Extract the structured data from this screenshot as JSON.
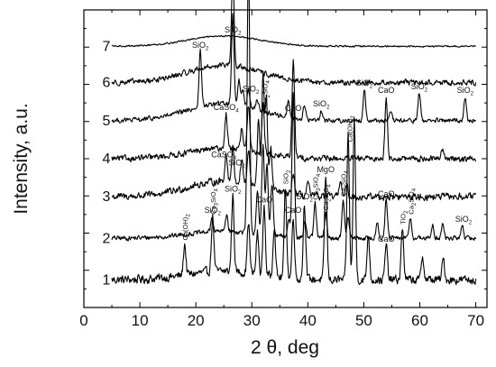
{
  "chart_data": {
    "type": "line",
    "title": "",
    "xlabel": "2 θ, deg",
    "ylabel": "Intensity, a.u.",
    "xlim": [
      0,
      72
    ],
    "xticks": [
      0,
      10,
      20,
      30,
      40,
      50,
      60,
      70
    ],
    "yticks_labeled": false,
    "grid": false,
    "legend": "none",
    "line_color": "#000000",
    "series": [
      {
        "label": "1",
        "baseline": 0.8,
        "noise": 0.22,
        "hump": 0.25,
        "peaks": [
          [
            18.0,
            0.9
          ],
          [
            23.0,
            1.6
          ],
          [
            26.6,
            2.2
          ],
          [
            29.4,
            1.5
          ],
          [
            31.0,
            1.2
          ],
          [
            32.2,
            2.0
          ],
          [
            34.0,
            1.5
          ],
          [
            36.0,
            2.6
          ],
          [
            37.4,
            1.8
          ],
          [
            39.4,
            2.2
          ],
          [
            43.2,
            3.0
          ],
          [
            47.2,
            4.2
          ],
          [
            48.3,
            4.6
          ],
          [
            50.8,
            1.3
          ],
          [
            54.0,
            1.0
          ],
          [
            56.9,
            1.5
          ],
          [
            60.5,
            0.7
          ],
          [
            64.2,
            0.6
          ]
        ]
      },
      {
        "label": "2",
        "baseline": 2.0,
        "noise": 0.12,
        "hump": 0.2,
        "peaks": [
          [
            22.9,
            0.4
          ],
          [
            25.5,
            0.5
          ],
          [
            29.4,
            8.0
          ],
          [
            31.0,
            1.2
          ],
          [
            32.0,
            2.6
          ],
          [
            32.7,
            2.0
          ],
          [
            33.6,
            1.5
          ],
          [
            36.6,
            0.5
          ],
          [
            37.4,
            4.2
          ],
          [
            39.5,
            0.5
          ],
          [
            41.3,
            1.0
          ],
          [
            43.2,
            0.7
          ],
          [
            46.3,
            1.1
          ],
          [
            47.2,
            0.6
          ],
          [
            52.4,
            0.5
          ],
          [
            54.0,
            1.1
          ],
          [
            58.3,
            0.6
          ],
          [
            62.3,
            0.4
          ],
          [
            64.1,
            0.4
          ],
          [
            67.6,
            0.4
          ]
        ]
      },
      {
        "label": "3",
        "baseline": 3.2,
        "noise": 0.18,
        "hump": 0.45,
        "peaks": [
          [
            25.4,
            0.8
          ],
          [
            26.6,
            1.0
          ],
          [
            28.2,
            0.7
          ],
          [
            29.4,
            1.0
          ],
          [
            31.2,
            2.0
          ],
          [
            32.0,
            3.2
          ],
          [
            32.6,
            2.6
          ],
          [
            33.4,
            1.2
          ],
          [
            37.4,
            0.6
          ],
          [
            40.0,
            0.4
          ],
          [
            45.8,
            0.5
          ],
          [
            47.0,
            0.3
          ]
        ]
      },
      {
        "label": "4",
        "baseline": 4.3,
        "noise": 0.15,
        "hump": 0.3,
        "peaks": [
          [
            25.4,
            1.0
          ],
          [
            28.2,
            0.6
          ],
          [
            29.4,
            1.3
          ],
          [
            32.0,
            1.5
          ],
          [
            37.4,
            2.8
          ],
          [
            54.0,
            1.8
          ],
          [
            64.0,
            0.3
          ]
        ]
      },
      {
        "label": "5",
        "baseline": 5.4,
        "noise": 0.12,
        "hump": 0.5,
        "peaks": [
          [
            20.8,
            1.6
          ],
          [
            26.6,
            2.6
          ],
          [
            27.7,
            0.7
          ],
          [
            28.4,
            0.5
          ],
          [
            29.4,
            0.5
          ],
          [
            31.0,
            0.3
          ],
          [
            36.5,
            0.5
          ],
          [
            39.4,
            0.4
          ],
          [
            42.4,
            0.3
          ],
          [
            50.1,
            0.9
          ],
          [
            54.8,
            0.2
          ],
          [
            59.9,
            0.8
          ],
          [
            68.1,
            0.7
          ]
        ]
      },
      {
        "label": "6",
        "baseline": 6.5,
        "noise": 0.14,
        "hump": 0.5,
        "peaks": [
          [
            26.6,
            2.7
          ]
        ]
      },
      {
        "label": "7",
        "baseline": 7.55,
        "noise": 0.04,
        "hump": 0.3,
        "peaks": []
      }
    ],
    "annotations": [
      {
        "curve": "7",
        "x": 26.6,
        "text": "SiO",
        "sub": "2",
        "rot": 0
      },
      {
        "curve": "5",
        "x": 20.8,
        "text": "SiO",
        "sub": "2",
        "rot": 0
      },
      {
        "curve": "5",
        "x": 29.8,
        "text": "SiO",
        "sub": "2",
        "rot": 0
      },
      {
        "curve": "5",
        "x": 37.4,
        "text": "CaO",
        "sub": "",
        "rot": 0
      },
      {
        "curve": "5",
        "x": 42.4,
        "text": "SiO",
        "sub": "2",
        "rot": 0
      },
      {
        "curve": "5",
        "x": 50.1,
        "text": "SiO",
        "sub": "2",
        "rot": 0
      },
      {
        "curve": "5",
        "x": 59.9,
        "text": "SiO",
        "sub": "2",
        "rot": 0
      },
      {
        "curve": "5",
        "x": 68.1,
        "text": "SiO",
        "sub": "2",
        "rot": 0
      },
      {
        "curve": "4",
        "x": 25.4,
        "text": "CaSO",
        "sub": "4",
        "rot": 0
      },
      {
        "curve": "4",
        "x": 32.3,
        "text": "Ca",
        "sub": "2",
        "rest": "SiO",
        "sub2": "4",
        "rot": -90
      },
      {
        "curve": "4",
        "x": 54.0,
        "text": "CaO",
        "sub": "",
        "rot": 0
      },
      {
        "curve": "3",
        "x": 25.0,
        "text": "CaSO",
        "sub": "4",
        "rot": 0
      },
      {
        "curve": "3",
        "x": 27.3,
        "text": "SiO",
        "sub": "2",
        "rot": 0
      },
      {
        "curve": "2",
        "x": 23.0,
        "text": "Ca",
        "sub": "3",
        "rest": "SiO",
        "sub2": "4",
        "rot": -90
      },
      {
        "curve": "2",
        "x": 41.3,
        "text": "Ca",
        "sub": "3",
        "rest": "SiO",
        "sub2": "4",
        "rot": -90
      },
      {
        "curve": "2",
        "x": 43.2,
        "text": "Ca",
        "sub": "2",
        "rest": "SiO",
        "sub2": "4",
        "rot": -90
      },
      {
        "curve": "2",
        "x": 46.3,
        "text": "Ca",
        "sub": "3",
        "rest": "SiO",
        "sub2": "4",
        "rot": -90
      },
      {
        "curve": "2",
        "x": 54.0,
        "text": "CaO",
        "sub": "",
        "rot": 0
      },
      {
        "curve": "2",
        "x": 58.4,
        "text": "Ca",
        "sub": "2",
        "rest": "SiO",
        "sub2": "4",
        "rot": -90
      },
      {
        "curve": "2",
        "x": 67.8,
        "text": "SiO",
        "sub": "2",
        "rot": 0
      },
      {
        "curve": "1",
        "x": 18.0,
        "text": "Ca(OH)",
        "sub": "2",
        "rot": -90
      },
      {
        "curve": "1",
        "x": 23.0,
        "text": "SiO",
        "sub": "2",
        "rot": 0
      },
      {
        "curve": "1",
        "x": 26.6,
        "text": "SiO",
        "sub": "2",
        "rot": 0
      },
      {
        "curve": "1",
        "x": 32.2,
        "text": "CaO",
        "sub": "",
        "rot": 0
      },
      {
        "curve": "1",
        "x": 36.0,
        "text": "SiO",
        "sub": "2",
        "rot": -90
      },
      {
        "curve": "1",
        "x": 37.4,
        "text": "CaO",
        "sub": "",
        "rot": 0
      },
      {
        "curve": "1",
        "x": 39.4,
        "text": "SiO",
        "sub": "2",
        "rot": 0
      },
      {
        "curve": "1",
        "x": 43.2,
        "text": "MgO",
        "sub": "",
        "rot": 0
      },
      {
        "curve": "1",
        "x": 47.4,
        "text": "Ca(OH)",
        "sub": "2",
        "rot": -90
      },
      {
        "curve": "1",
        "x": 54.0,
        "text": "CaO",
        "sub": "",
        "rot": 0
      },
      {
        "curve": "1",
        "x": 56.9,
        "text": "TiO",
        "sub": "2",
        "rot": -90
      }
    ]
  }
}
